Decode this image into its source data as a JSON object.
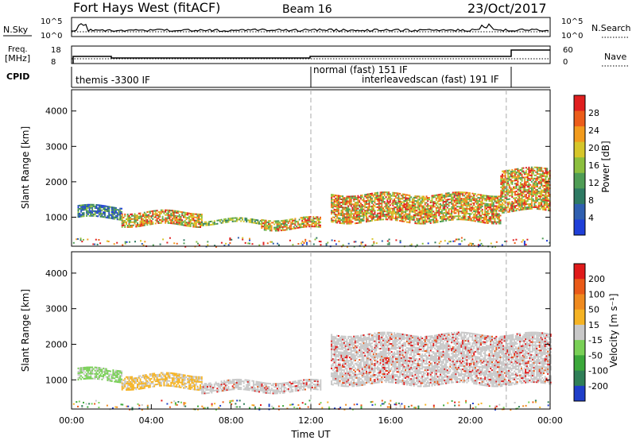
{
  "header": {
    "radar": "Fort Hays West (fitACF)",
    "beam": "Beam 16",
    "date": "23/Oct/2017"
  },
  "strips": {
    "nsky": {
      "label": "N.Sky",
      "ticks": [
        "10^5",
        "10^0"
      ]
    },
    "nsearch": {
      "label": "N.Search",
      "ticks": [
        "10^5",
        "10^0"
      ]
    },
    "freq": {
      "label_line1": "Freq.",
      "label_line2": "[MHz]",
      "ticks": [
        "18",
        "8"
      ]
    },
    "nave": {
      "label": "Nave",
      "ticks": [
        "60",
        "0"
      ]
    },
    "cpid": {
      "label": "CPID",
      "segments": [
        {
          "text": "themis -3300 IF"
        },
        {
          "text": "normal (fast) 151 IF"
        },
        {
          "text": "interleavedscan (fast) 191 IF"
        }
      ]
    }
  },
  "chart_data": [
    {
      "type": "heatmap",
      "name": "power",
      "title": "",
      "xlabel": "Time UT",
      "ylabel": "Slant Range [km]",
      "xlim_hours": [
        0,
        24
      ],
      "ylim": [
        180,
        4600
      ],
      "x_ticks": [
        "00:00",
        "04:00",
        "08:00",
        "12:00",
        "16:00",
        "20:00",
        "00:00"
      ],
      "y_ticks": [
        1000,
        2000,
        3000,
        4000
      ],
      "colorbar": {
        "label": "Power [dB]",
        "range": [
          0,
          32
        ],
        "ticks": [
          4,
          8,
          12,
          16,
          20,
          24,
          28
        ],
        "colors": [
          "#1f3fd8",
          "#2f5fb0",
          "#2e7a63",
          "#4f9d55",
          "#8cbf3e",
          "#d6c62a",
          "#f29b1d",
          "#ec5d1a",
          "#e01f1f"
        ]
      }
    },
    {
      "type": "heatmap",
      "name": "velocity",
      "title": "",
      "xlabel": "Time UT",
      "ylabel": "Slant Range [km]",
      "xlim_hours": [
        0,
        24
      ],
      "ylim": [
        180,
        4600
      ],
      "x_ticks": [
        "00:00",
        "04:00",
        "08:00",
        "12:00",
        "16:00",
        "20:00",
        "00:00"
      ],
      "y_ticks": [
        1000,
        2000,
        3000,
        4000
      ],
      "colorbar": {
        "label": "Velocity [m s⁻¹]",
        "ticks": [
          "200",
          "100",
          "50",
          "15",
          "-15",
          "-50",
          "-100",
          "-200"
        ],
        "colors": [
          "#1f3ec9",
          "#2f7f57",
          "#3ba83a",
          "#79d056",
          "#c8c8c8",
          "#f5b324",
          "#ef8a1f",
          "#ea5a18",
          "#e01a1a"
        ]
      }
    }
  ],
  "mode_change_hours": [
    12,
    21.8
  ],
  "scatter_regions": [
    {
      "panel": "power",
      "t0": 0.3,
      "t1": 2.5,
      "r0": 1000,
      "r1": 1350,
      "kind": "weak"
    },
    {
      "panel": "power",
      "t0": 2.5,
      "t1": 6.5,
      "r0": 800,
      "r1": 1200,
      "kind": "strong"
    },
    {
      "panel": "power",
      "t0": 6.5,
      "t1": 9.5,
      "r0": 850,
      "r1": 950,
      "kind": "mid"
    },
    {
      "panel": "power",
      "t0": 9.5,
      "t1": 12.5,
      "r0": 700,
      "r1": 1000,
      "kind": "strong"
    },
    {
      "panel": "power",
      "t0": 13,
      "t1": 21.5,
      "r0": 900,
      "r1": 1700,
      "kind": "strong"
    },
    {
      "panel": "power",
      "t0": 21.5,
      "t1": 24,
      "r0": 1200,
      "r1": 2400,
      "kind": "strong"
    },
    {
      "panel": "power",
      "t0": 0,
      "t1": 24,
      "r0": 200,
      "r1": 400,
      "kind": "sparse"
    },
    {
      "panel": "velocity",
      "t0": 0.3,
      "t1": 2.5,
      "r0": 1000,
      "r1": 1350,
      "kind": "green"
    },
    {
      "panel": "velocity",
      "t0": 2.5,
      "t1": 6.5,
      "r0": 800,
      "r1": 1200,
      "kind": "orange"
    },
    {
      "panel": "velocity",
      "t0": 6.5,
      "t1": 12.5,
      "r0": 700,
      "r1": 1000,
      "kind": "grey"
    },
    {
      "panel": "velocity",
      "t0": 13,
      "t1": 24,
      "r0": 900,
      "r1": 2300,
      "kind": "grey"
    },
    {
      "panel": "velocity",
      "t0": 0,
      "t1": 24,
      "r0": 200,
      "r1": 400,
      "kind": "sparse"
    }
  ]
}
